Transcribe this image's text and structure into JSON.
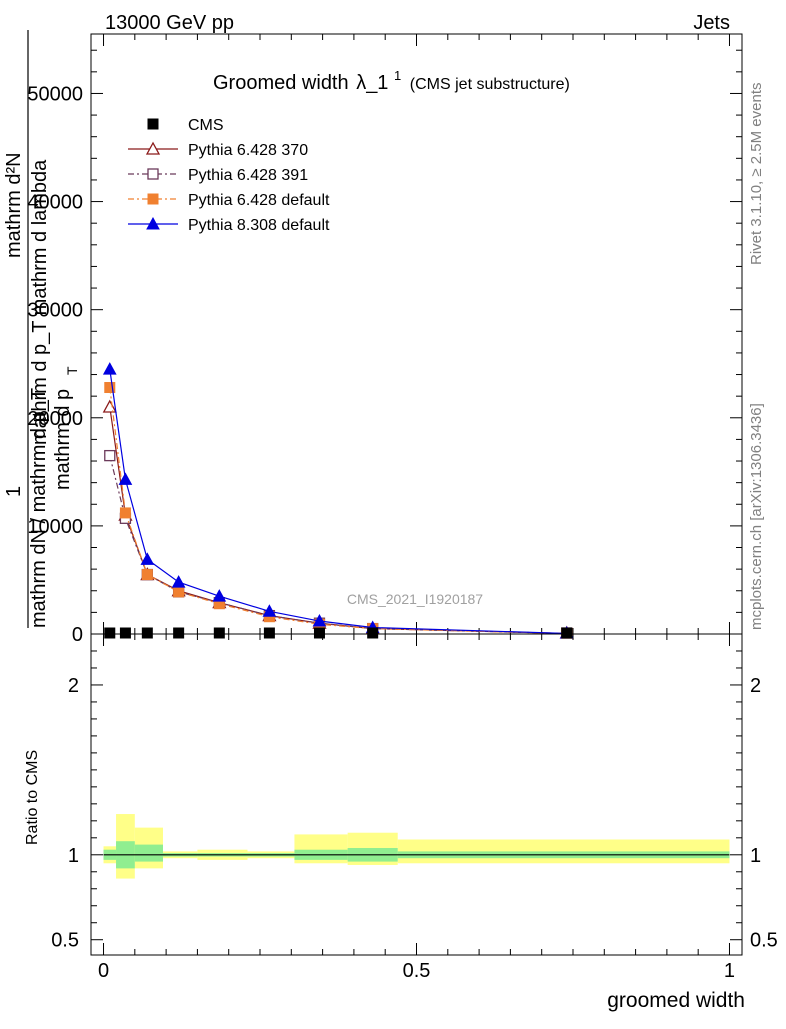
{
  "header": {
    "energy_label": "13000 GeV pp",
    "category_label": "Jets"
  },
  "side": {
    "rivet_label": "Rivet 3.1.10, ≥ 2.5M events",
    "mcplots_label": "mcplots.cern.ch [arXiv:1306.3436]"
  },
  "chart_data": [
    {
      "type": "line",
      "title_main": "Groomed width",
      "title_symbol": "λ_1",
      "title_sup": "1",
      "title_sub": "(CMS jet substructure)",
      "watermark": "CMS_2021_I1920187",
      "ylabel_top": "1",
      "ylabel_frac_num": "mathrm d²N",
      "ylabel_frac_num_sub": "mathrm d p_T mathrm d lambda",
      "ylabel_frac_den": "mathrm dN / mathrm d p_T",
      "ylabel_frac_den2": "mathrm d p",
      "ylabel_frac_den2_sub": "T",
      "xlim": [
        -0.02,
        1.02
      ],
      "ylim": [
        0,
        55500
      ],
      "y_ticks": [
        0,
        10000,
        20000,
        30000,
        40000,
        50000
      ],
      "y_tick_labels": [
        "0",
        "10000",
        "20000",
        "30000",
        "40000",
        "50000"
      ],
      "legend_position": "top-left",
      "x": [
        0.01,
        0.035,
        0.07,
        0.12,
        0.185,
        0.265,
        0.345,
        0.43,
        0.74
      ],
      "series": [
        {
          "name": "CMS",
          "color": "#000000",
          "marker": "square-filled",
          "dash": "none",
          "values": [
            50,
            50,
            50,
            50,
            50,
            50,
            50,
            50,
            50
          ]
        },
        {
          "name": "Pythia 6.428 370",
          "color": "#8b1a1a",
          "marker": "triangle-open",
          "dash": "solid",
          "values": [
            21000,
            11000,
            5500,
            4000,
            2900,
            1700,
            1000,
            500,
            50
          ]
        },
        {
          "name": "Pythia 6.428 391",
          "color": "#6b3a5a",
          "marker": "square-open",
          "dash": "6,3,2,3",
          "values": [
            16500,
            10700,
            5500,
            3900,
            2900,
            1700,
            1000,
            500,
            50
          ]
        },
        {
          "name": "Pythia 6.428 default",
          "color": "#f08030",
          "marker": "square-filled",
          "dash": "6,3,2,3",
          "values": [
            22800,
            11200,
            5500,
            3900,
            2800,
            1600,
            900,
            500,
            50
          ]
        },
        {
          "name": "Pythia 8.308 default",
          "color": "#0000e0",
          "marker": "triangle-filled",
          "dash": "solid",
          "values": [
            24500,
            14300,
            6900,
            4800,
            3500,
            2100,
            1200,
            600,
            50
          ]
        }
      ]
    },
    {
      "type": "area",
      "ylabel": "Ratio to CMS",
      "xlabel": "groomed width",
      "xlim": [
        -0.02,
        1.02
      ],
      "ylim": [
        0.41,
        2.3
      ],
      "y_ticks": [
        0.5,
        1,
        2
      ],
      "y_tick_labels": [
        "0.5",
        "1",
        "2"
      ],
      "x_ticks": [
        0,
        0.5,
        1
      ],
      "x_tick_labels": [
        "0",
        "0.5",
        "1"
      ],
      "reference_line": 1,
      "bins": [
        {
          "lo": 0.0,
          "hi": 0.02,
          "inner": [
            0.97,
            1.03
          ],
          "outer": [
            0.95,
            1.05
          ]
        },
        {
          "lo": 0.02,
          "hi": 0.05,
          "inner": [
            0.92,
            1.08
          ],
          "outer": [
            0.86,
            1.24
          ]
        },
        {
          "lo": 0.05,
          "hi": 0.095,
          "inner": [
            0.96,
            1.06
          ],
          "outer": [
            0.92,
            1.16
          ]
        },
        {
          "lo": 0.095,
          "hi": 0.15,
          "inner": [
            0.99,
            1.01
          ],
          "outer": [
            0.98,
            1.02
          ]
        },
        {
          "lo": 0.15,
          "hi": 0.23,
          "inner": [
            0.99,
            1.01
          ],
          "outer": [
            0.97,
            1.03
          ]
        },
        {
          "lo": 0.23,
          "hi": 0.305,
          "inner": [
            0.99,
            1.01
          ],
          "outer": [
            0.98,
            1.02
          ]
        },
        {
          "lo": 0.305,
          "hi": 0.39,
          "inner": [
            0.97,
            1.03
          ],
          "outer": [
            0.95,
            1.12
          ]
        },
        {
          "lo": 0.39,
          "hi": 0.47,
          "inner": [
            0.96,
            1.04
          ],
          "outer": [
            0.94,
            1.13
          ]
        },
        {
          "lo": 0.47,
          "hi": 1.0,
          "inner": [
            0.98,
            1.02
          ],
          "outer": [
            0.95,
            1.09
          ]
        }
      ],
      "inner_color": "#90ee90",
      "outer_color": "#ffff88"
    }
  ]
}
